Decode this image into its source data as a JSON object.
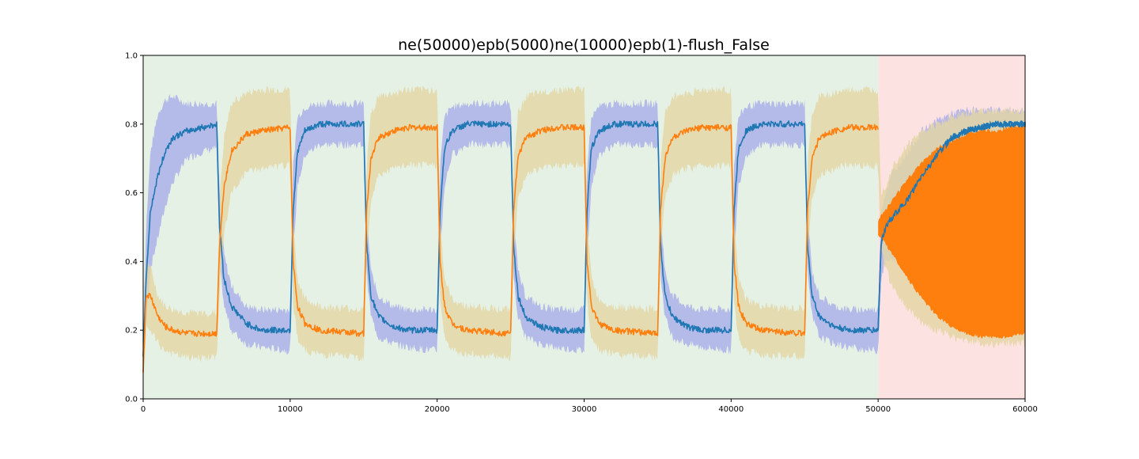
{
  "chart_data": {
    "type": "line",
    "title": "ne(50000)epb(5000)ne(10000)epb(1)-flush_False",
    "xlabel": "",
    "ylabel": "",
    "xlim": [
      0,
      60000
    ],
    "ylim": [
      0.0,
      1.0
    ],
    "x_ticks": [
      0,
      10000,
      20000,
      30000,
      40000,
      50000,
      60000
    ],
    "x_tick_labels": [
      "0",
      "10000",
      "20000",
      "30000",
      "40000",
      "50000",
      "60000"
    ],
    "y_ticks": [
      0.0,
      0.2,
      0.4,
      0.6,
      0.8,
      1.0
    ],
    "y_tick_labels": [
      "0.0",
      "0.2",
      "0.4",
      "0.6",
      "0.8",
      "1.0"
    ],
    "grid": false,
    "legend": "none",
    "background_regions": [
      {
        "x_start": 0,
        "x_end": 50000,
        "color": "#e5f1e5"
      },
      {
        "x_start": 50000,
        "x_end": 60000,
        "color": "#fde2e2"
      }
    ],
    "series": [
      {
        "line_color": "#1f77b4",
        "band_color": "#a8aee8",
        "x": [
          0,
          200,
          500,
          1000,
          1500,
          2000,
          3000,
          4000,
          5000,
          5200,
          5500,
          6000,
          7000,
          8000,
          10000,
          10200,
          10500,
          11000,
          12000,
          15000,
          15200,
          15500,
          16000,
          17000,
          18000,
          20000,
          20200,
          20500,
          21000,
          22000,
          25000,
          25200,
          25500,
          26000,
          27000,
          28000,
          30000,
          30200,
          30500,
          31000,
          32000,
          35000,
          35200,
          35500,
          36000,
          37000,
          38000,
          40000,
          40200,
          40500,
          41000,
          42000,
          45000,
          45200,
          45500,
          46000,
          47000,
          48000,
          50000,
          50200,
          50500,
          51000,
          52000,
          53000,
          54000,
          55000,
          56000,
          57000,
          58000,
          59000,
          60000
        ],
        "y": [
          0.12,
          0.35,
          0.55,
          0.65,
          0.72,
          0.76,
          0.78,
          0.79,
          0.8,
          0.5,
          0.35,
          0.27,
          0.22,
          0.2,
          0.2,
          0.55,
          0.72,
          0.78,
          0.8,
          0.8,
          0.45,
          0.3,
          0.24,
          0.21,
          0.2,
          0.2,
          0.55,
          0.73,
          0.78,
          0.8,
          0.8,
          0.45,
          0.3,
          0.24,
          0.21,
          0.2,
          0.2,
          0.55,
          0.73,
          0.78,
          0.8,
          0.8,
          0.45,
          0.3,
          0.24,
          0.21,
          0.2,
          0.2,
          0.55,
          0.73,
          0.78,
          0.8,
          0.8,
          0.45,
          0.3,
          0.24,
          0.21,
          0.2,
          0.2,
          0.45,
          0.5,
          0.53,
          0.58,
          0.65,
          0.71,
          0.76,
          0.78,
          0.79,
          0.8,
          0.8,
          0.8
        ],
        "upper": [
          0.18,
          0.5,
          0.72,
          0.83,
          0.87,
          0.88,
          0.86,
          0.86,
          0.86,
          0.6,
          0.42,
          0.33,
          0.27,
          0.26,
          0.26,
          0.68,
          0.82,
          0.85,
          0.86,
          0.86,
          0.55,
          0.37,
          0.3,
          0.27,
          0.26,
          0.26,
          0.68,
          0.82,
          0.85,
          0.86,
          0.86,
          0.55,
          0.37,
          0.3,
          0.27,
          0.26,
          0.26,
          0.68,
          0.82,
          0.85,
          0.86,
          0.86,
          0.55,
          0.37,
          0.3,
          0.27,
          0.26,
          0.26,
          0.68,
          0.82,
          0.85,
          0.86,
          0.86,
          0.55,
          0.37,
          0.3,
          0.27,
          0.26,
          0.26,
          0.55,
          0.6,
          0.66,
          0.72,
          0.78,
          0.81,
          0.83,
          0.84,
          0.84,
          0.84,
          0.84,
          0.84
        ],
        "lower": [
          0.06,
          0.22,
          0.38,
          0.47,
          0.56,
          0.63,
          0.7,
          0.72,
          0.73,
          0.4,
          0.27,
          0.2,
          0.16,
          0.15,
          0.14,
          0.42,
          0.62,
          0.71,
          0.74,
          0.74,
          0.36,
          0.24,
          0.18,
          0.16,
          0.15,
          0.14,
          0.42,
          0.62,
          0.71,
          0.74,
          0.74,
          0.36,
          0.24,
          0.18,
          0.16,
          0.15,
          0.14,
          0.42,
          0.62,
          0.71,
          0.74,
          0.74,
          0.36,
          0.24,
          0.18,
          0.16,
          0.15,
          0.14,
          0.42,
          0.62,
          0.71,
          0.74,
          0.74,
          0.36,
          0.24,
          0.18,
          0.16,
          0.15,
          0.14,
          0.35,
          0.4,
          0.4,
          0.44,
          0.5,
          0.58,
          0.66,
          0.71,
          0.73,
          0.74,
          0.75,
          0.75
        ]
      },
      {
        "line_color": "#ff7f0e",
        "band_color": "#e3d6a2",
        "x": [
          0,
          200,
          500,
          1000,
          1500,
          2000,
          3000,
          4000,
          5000,
          5200,
          5500,
          6000,
          7000,
          8000,
          10000,
          10200,
          10500,
          11000,
          12000,
          15000,
          15200,
          15500,
          16000,
          17000,
          18000,
          20000,
          20200,
          20500,
          21000,
          22000,
          25000,
          25200,
          25500,
          26000,
          27000,
          28000,
          30000,
          30200,
          30500,
          31000,
          32000,
          35000,
          35200,
          35500,
          36000,
          37000,
          38000,
          40000,
          40200,
          40500,
          41000,
          42000,
          45000,
          45200,
          45500,
          46000,
          47000,
          48000,
          50000,
          50200,
          50500,
          51000,
          52000,
          53000,
          54000,
          55000,
          56000,
          57000,
          58000,
          59000,
          60000
        ],
        "y": [
          0.08,
          0.3,
          0.3,
          0.24,
          0.21,
          0.2,
          0.19,
          0.19,
          0.19,
          0.45,
          0.62,
          0.72,
          0.77,
          0.78,
          0.79,
          0.4,
          0.27,
          0.22,
          0.2,
          0.19,
          0.55,
          0.7,
          0.76,
          0.78,
          0.79,
          0.79,
          0.4,
          0.27,
          0.22,
          0.2,
          0.19,
          0.55,
          0.7,
          0.76,
          0.78,
          0.79,
          0.79,
          0.4,
          0.27,
          0.22,
          0.2,
          0.19,
          0.55,
          0.7,
          0.76,
          0.78,
          0.79,
          0.79,
          0.4,
          0.27,
          0.22,
          0.2,
          0.19,
          0.55,
          0.7,
          0.76,
          0.78,
          0.79,
          0.79,
          0.52,
          0.5,
          0.5,
          0.5,
          0.5,
          0.5,
          0.5,
          0.5,
          0.5,
          0.5,
          0.5,
          0.5
        ],
        "upper": [
          0.14,
          0.4,
          0.38,
          0.3,
          0.27,
          0.26,
          0.25,
          0.25,
          0.25,
          0.58,
          0.76,
          0.86,
          0.89,
          0.9,
          0.9,
          0.52,
          0.35,
          0.29,
          0.27,
          0.26,
          0.68,
          0.83,
          0.88,
          0.89,
          0.9,
          0.9,
          0.52,
          0.35,
          0.29,
          0.27,
          0.26,
          0.68,
          0.83,
          0.88,
          0.89,
          0.9,
          0.9,
          0.52,
          0.35,
          0.29,
          0.27,
          0.26,
          0.68,
          0.83,
          0.88,
          0.89,
          0.9,
          0.9,
          0.52,
          0.35,
          0.29,
          0.27,
          0.26,
          0.68,
          0.83,
          0.88,
          0.89,
          0.9,
          0.9,
          0.6,
          0.62,
          0.68,
          0.74,
          0.78,
          0.8,
          0.82,
          0.83,
          0.84,
          0.84,
          0.84,
          0.84
        ],
        "lower": [
          0.04,
          0.2,
          0.2,
          0.16,
          0.14,
          0.13,
          0.12,
          0.12,
          0.12,
          0.32,
          0.48,
          0.6,
          0.66,
          0.67,
          0.68,
          0.28,
          0.18,
          0.14,
          0.13,
          0.12,
          0.42,
          0.58,
          0.65,
          0.67,
          0.68,
          0.68,
          0.28,
          0.18,
          0.14,
          0.13,
          0.12,
          0.42,
          0.58,
          0.65,
          0.67,
          0.68,
          0.68,
          0.28,
          0.18,
          0.14,
          0.13,
          0.12,
          0.42,
          0.58,
          0.65,
          0.67,
          0.68,
          0.68,
          0.28,
          0.18,
          0.14,
          0.13,
          0.12,
          0.42,
          0.58,
          0.65,
          0.67,
          0.68,
          0.68,
          0.44,
          0.38,
          0.32,
          0.26,
          0.22,
          0.2,
          0.18,
          0.17,
          0.16,
          0.16,
          0.16,
          0.16
        ],
        "oscillation_region": {
          "x": [
            50000,
            51000,
            52000,
            53000,
            54000,
            55000,
            56000,
            57000,
            58000,
            59000,
            60000
          ],
          "envelope_upper": [
            0.52,
            0.58,
            0.64,
            0.69,
            0.73,
            0.75,
            0.77,
            0.78,
            0.78,
            0.79,
            0.8
          ],
          "envelope_lower": [
            0.48,
            0.42,
            0.35,
            0.29,
            0.24,
            0.21,
            0.19,
            0.18,
            0.18,
            0.18,
            0.19
          ]
        }
      }
    ]
  }
}
